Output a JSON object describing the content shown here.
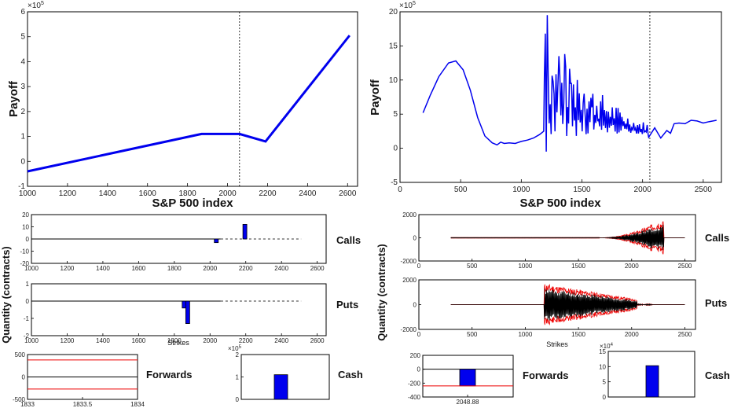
{
  "left": {
    "payoff": {
      "type": "line",
      "x": [
        1000,
        1870,
        2060,
        2190,
        2610
      ],
      "y": [
        -0.4,
        1.1,
        1.1,
        0.8,
        5.05
      ],
      "xlim": [
        1000,
        2650
      ],
      "ylim": [
        -1,
        6
      ],
      "xticks": [
        "1000",
        "1200",
        "1400",
        "1600",
        "1800",
        "2000",
        "2200",
        "2400",
        "2600"
      ],
      "yticks": [
        "-1",
        "0",
        "1",
        "2",
        "3",
        "4",
        "5",
        "6"
      ],
      "exponent": "×10",
      "exponent_power": "5",
      "xlabel": "S&P 500 index",
      "ylabel": "Payoff",
      "vline_x": 2060,
      "color": "#0000ee"
    },
    "calls": {
      "type": "bar",
      "label": "Calls",
      "xlim": [
        1000,
        2650
      ],
      "ylim": [
        -20,
        20
      ],
      "xticks": [
        "1000",
        "1200",
        "1400",
        "1600",
        "1800",
        "2000",
        "2200",
        "2400",
        "2600"
      ],
      "yticks": [
        "20",
        "10",
        "0",
        "-10",
        "-20"
      ],
      "bars": [
        {
          "x": 2035,
          "value": -3
        },
        {
          "x": 2195,
          "value": 12
        }
      ]
    },
    "puts": {
      "type": "bar",
      "label": "Puts",
      "xlim": [
        1000,
        2650
      ],
      "ylim": [
        -2,
        1
      ],
      "xticks": [
        "1000",
        "1200",
        "1400",
        "1600",
        "1800",
        "2000",
        "2200",
        "2400",
        "2600"
      ],
      "yticks": [
        "1",
        "0",
        "-1",
        "-2"
      ],
      "bars": [
        {
          "x": 1855,
          "value": -0.4
        },
        {
          "x": 1875,
          "value": -1.3
        }
      ],
      "xlabel": "Strikes"
    },
    "forwards": {
      "type": "bar",
      "label": "Forwards",
      "xlim": [
        1833,
        1834
      ],
      "ylim": [
        -500,
        500
      ],
      "xticks": [
        "1833",
        "1833.5",
        "1834"
      ],
      "yticks": [
        "500",
        "0",
        "-500"
      ],
      "red_lines": [
        380,
        -270
      ],
      "bars": []
    },
    "cash": {
      "type": "bar",
      "label": "Cash",
      "ylim": [
        0,
        2
      ],
      "yticks": [
        "2",
        "1",
        "0"
      ],
      "exponent": "×10",
      "exponent_power": "5",
      "value": 1.1
    }
  },
  "right": {
    "payoff": {
      "type": "line",
      "xlim": [
        0,
        2650
      ],
      "ylim": [
        -5,
        20
      ],
      "xticks": [
        "0",
        "500",
        "1000",
        "1500",
        "2000",
        "2500"
      ],
      "yticks": [
        "-5",
        "0",
        "5",
        "10",
        "15",
        "20"
      ],
      "exponent": "×10",
      "exponent_power": "5",
      "xlabel": "S&P 500 index",
      "ylabel": "Payoff",
      "vline_x": 2060,
      "color": "#0000ee",
      "smooth_segment": {
        "x": [
          190,
          250,
          320,
          400,
          460,
          520,
          580,
          640,
          700,
          760,
          800,
          830,
          860,
          900,
          950,
          1000,
          1050,
          1100,
          1150,
          1185
        ],
        "y": [
          5.2,
          7.8,
          10.5,
          12.5,
          12.8,
          11.5,
          8.5,
          4.5,
          1.8,
          0.8,
          0.5,
          0.9,
          0.7,
          0.8,
          0.7,
          1.0,
          1.2,
          1.5,
          2.0,
          2.5
        ]
      },
      "noisy_segment": {
        "x_start": 1190,
        "x_end": 2050,
        "baseline_start": 6.0,
        "baseline_end": 2.4,
        "peaks": [
          [
            1195,
            16.8
          ],
          [
            1205,
            -0.5
          ],
          [
            1215,
            19.5
          ],
          [
            1225,
            10.6
          ],
          [
            1260,
            9.8
          ],
          [
            1310,
            13.5
          ],
          [
            1360,
            13.8
          ],
          [
            1410,
            9.5
          ],
          [
            1460,
            10.0
          ],
          [
            1520,
            8.0
          ],
          [
            1580,
            6.0
          ]
        ]
      },
      "tail_segment": {
        "x": [
          2050,
          2100,
          2150,
          2200,
          2230,
          2260,
          2300,
          2350,
          2400,
          2450,
          2500,
          2550,
          2610
        ],
        "y": [
          2.4,
          2.2,
          2.3,
          1.8,
          3.0,
          3.6,
          3.7,
          3.6,
          4.1,
          4.0,
          3.7,
          3.9,
          4.1
        ]
      }
    },
    "calls": {
      "type": "line",
      "label": "Calls",
      "xlim": [
        0,
        2600
      ],
      "ylim": [
        -2000,
        2000
      ],
      "xticks": [
        "0",
        "500",
        "1000",
        "1500",
        "2000",
        "2500"
      ],
      "yticks": [
        "2000",
        "0",
        "-2000"
      ],
      "activity": {
        "x_start": 300,
        "x_end": 2300,
        "peak_x": 2250,
        "peak_amp": 1500
      }
    },
    "puts": {
      "type": "line",
      "label": "Puts",
      "xlim": [
        0,
        2600
      ],
      "ylim": [
        -2000,
        2000
      ],
      "xticks": [
        "0",
        "500",
        "1000",
        "1500",
        "2000",
        "2500"
      ],
      "yticks": [
        "2000",
        "0",
        "-2000"
      ],
      "activity": {
        "x_start": 1180,
        "x_end": 2050,
        "peak_x": 1250,
        "peak_amp": 1700
      },
      "xlabel": "Strikes"
    },
    "forwards": {
      "type": "bar",
      "label": "Forwards",
      "ylim": [
        -400,
        200
      ],
      "yticks": [
        "200",
        "0",
        "-200",
        "-400"
      ],
      "xticks": [
        "2048.88"
      ],
      "red_lines": [
        -240
      ],
      "value": -240
    },
    "cash": {
      "type": "bar",
      "label": "Cash",
      "ylim": [
        0,
        15
      ],
      "yticks": [
        "15",
        "10",
        "5",
        "0"
      ],
      "exponent": "×10",
      "exponent_power": "4",
      "value": 10.3
    }
  },
  "shared": {
    "quantity_label": "Quantity (contracts)"
  }
}
